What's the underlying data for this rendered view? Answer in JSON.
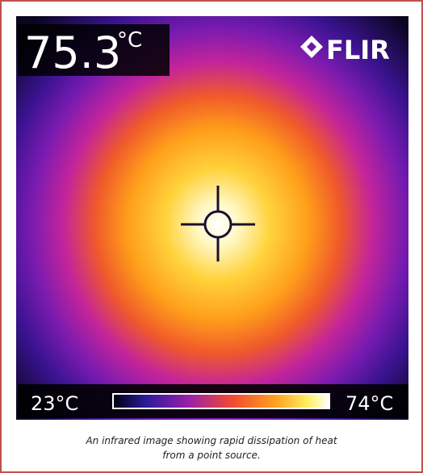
{
  "image": {
    "temperature": "75.3",
    "temperature_unit": "°C",
    "brand": "FLIR",
    "scale_min": "23°C",
    "scale_max": "74°C"
  },
  "caption": [
    "An infrared image showing rapid dissipation of heat",
    "from a point source."
  ]
}
